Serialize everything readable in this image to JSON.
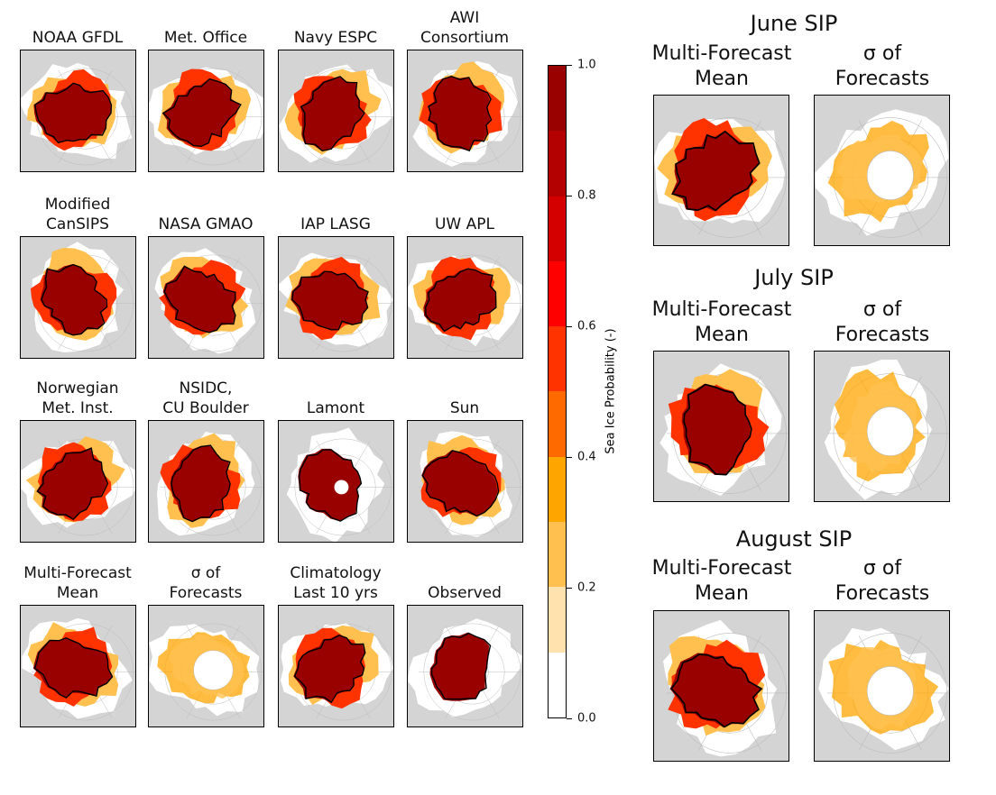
{
  "grid_panels": [
    {
      "title": [
        "NOAA GFDL"
      ],
      "type": "forecast",
      "seed": 1
    },
    {
      "title": [
        "Met. Office"
      ],
      "type": "forecast",
      "seed": 2
    },
    {
      "title": [
        "Navy ESPC"
      ],
      "type": "forecast",
      "seed": 3
    },
    {
      "title": [
        "AWI",
        "Consortium"
      ],
      "type": "forecast",
      "seed": 4
    },
    {
      "title": [
        "Modified",
        "CanSIPS"
      ],
      "type": "forecast",
      "seed": 5
    },
    {
      "title": [
        "NASA GMAO"
      ],
      "type": "forecast",
      "seed": 6
    },
    {
      "title": [
        "IAP LASG"
      ],
      "type": "forecast",
      "seed": 7
    },
    {
      "title": [
        "UW APL"
      ],
      "type": "forecast",
      "seed": 8
    },
    {
      "title": [
        "Norwegian",
        "Met. Inst."
      ],
      "type": "forecast",
      "seed": 9
    },
    {
      "title": [
        "NSIDC,",
        "CU Boulder"
      ],
      "type": "forecast",
      "seed": 10
    },
    {
      "title": [
        "Lamont"
      ],
      "type": "hole",
      "seed": 11
    },
    {
      "title": [
        "Sun"
      ],
      "type": "forecast",
      "seed": 12
    },
    {
      "title": [
        "Multi-Forecast",
        "Mean"
      ],
      "type": "mean",
      "seed": 13
    },
    {
      "title": [
        "σ of",
        "Forecasts"
      ],
      "type": "std",
      "seed": 14
    },
    {
      "title": [
        "Climatology",
        "Last 10 yrs"
      ],
      "type": "forecast",
      "seed": 15
    },
    {
      "title": [
        "Observed"
      ],
      "type": "observed",
      "seed": 16
    }
  ],
  "months": [
    {
      "title": "June SIP",
      "panels": [
        {
          "title": [
            "Multi-Forecast",
            "Mean"
          ],
          "type": "mean",
          "seed": 21
        },
        {
          "title": [
            "σ of",
            "Forecasts"
          ],
          "type": "std",
          "seed": 22
        }
      ]
    },
    {
      "title": "July SIP",
      "panels": [
        {
          "title": [
            "Multi-Forecast",
            "Mean"
          ],
          "type": "mean",
          "seed": 23
        },
        {
          "title": [
            "σ of",
            "Forecasts"
          ],
          "type": "std",
          "seed": 24
        }
      ]
    },
    {
      "title": "August SIP",
      "panels": [
        {
          "title": [
            "Multi-Forecast",
            "Mean"
          ],
          "type": "mean",
          "seed": 25
        },
        {
          "title": [
            "σ of",
            "Forecasts"
          ],
          "type": "std",
          "seed": 26
        }
      ]
    }
  ],
  "colorbar": {
    "label": "Sea Ice Probability (-)",
    "range": [
      0.0,
      1.0
    ],
    "ticks": [
      "0.0",
      "0.2",
      "0.4",
      "0.6",
      "0.8",
      "1.0"
    ],
    "bins": [
      "#ffffff",
      "#ffe2ad",
      "#ffc050",
      "#ffa500",
      "#ff6a00",
      "#ff3300",
      "#ff0000",
      "#d40000",
      "#b30000",
      "#990000"
    ]
  },
  "colors": {
    "land": "#d4d4d4",
    "ocean": "#ffffff",
    "contour": "#000000"
  }
}
